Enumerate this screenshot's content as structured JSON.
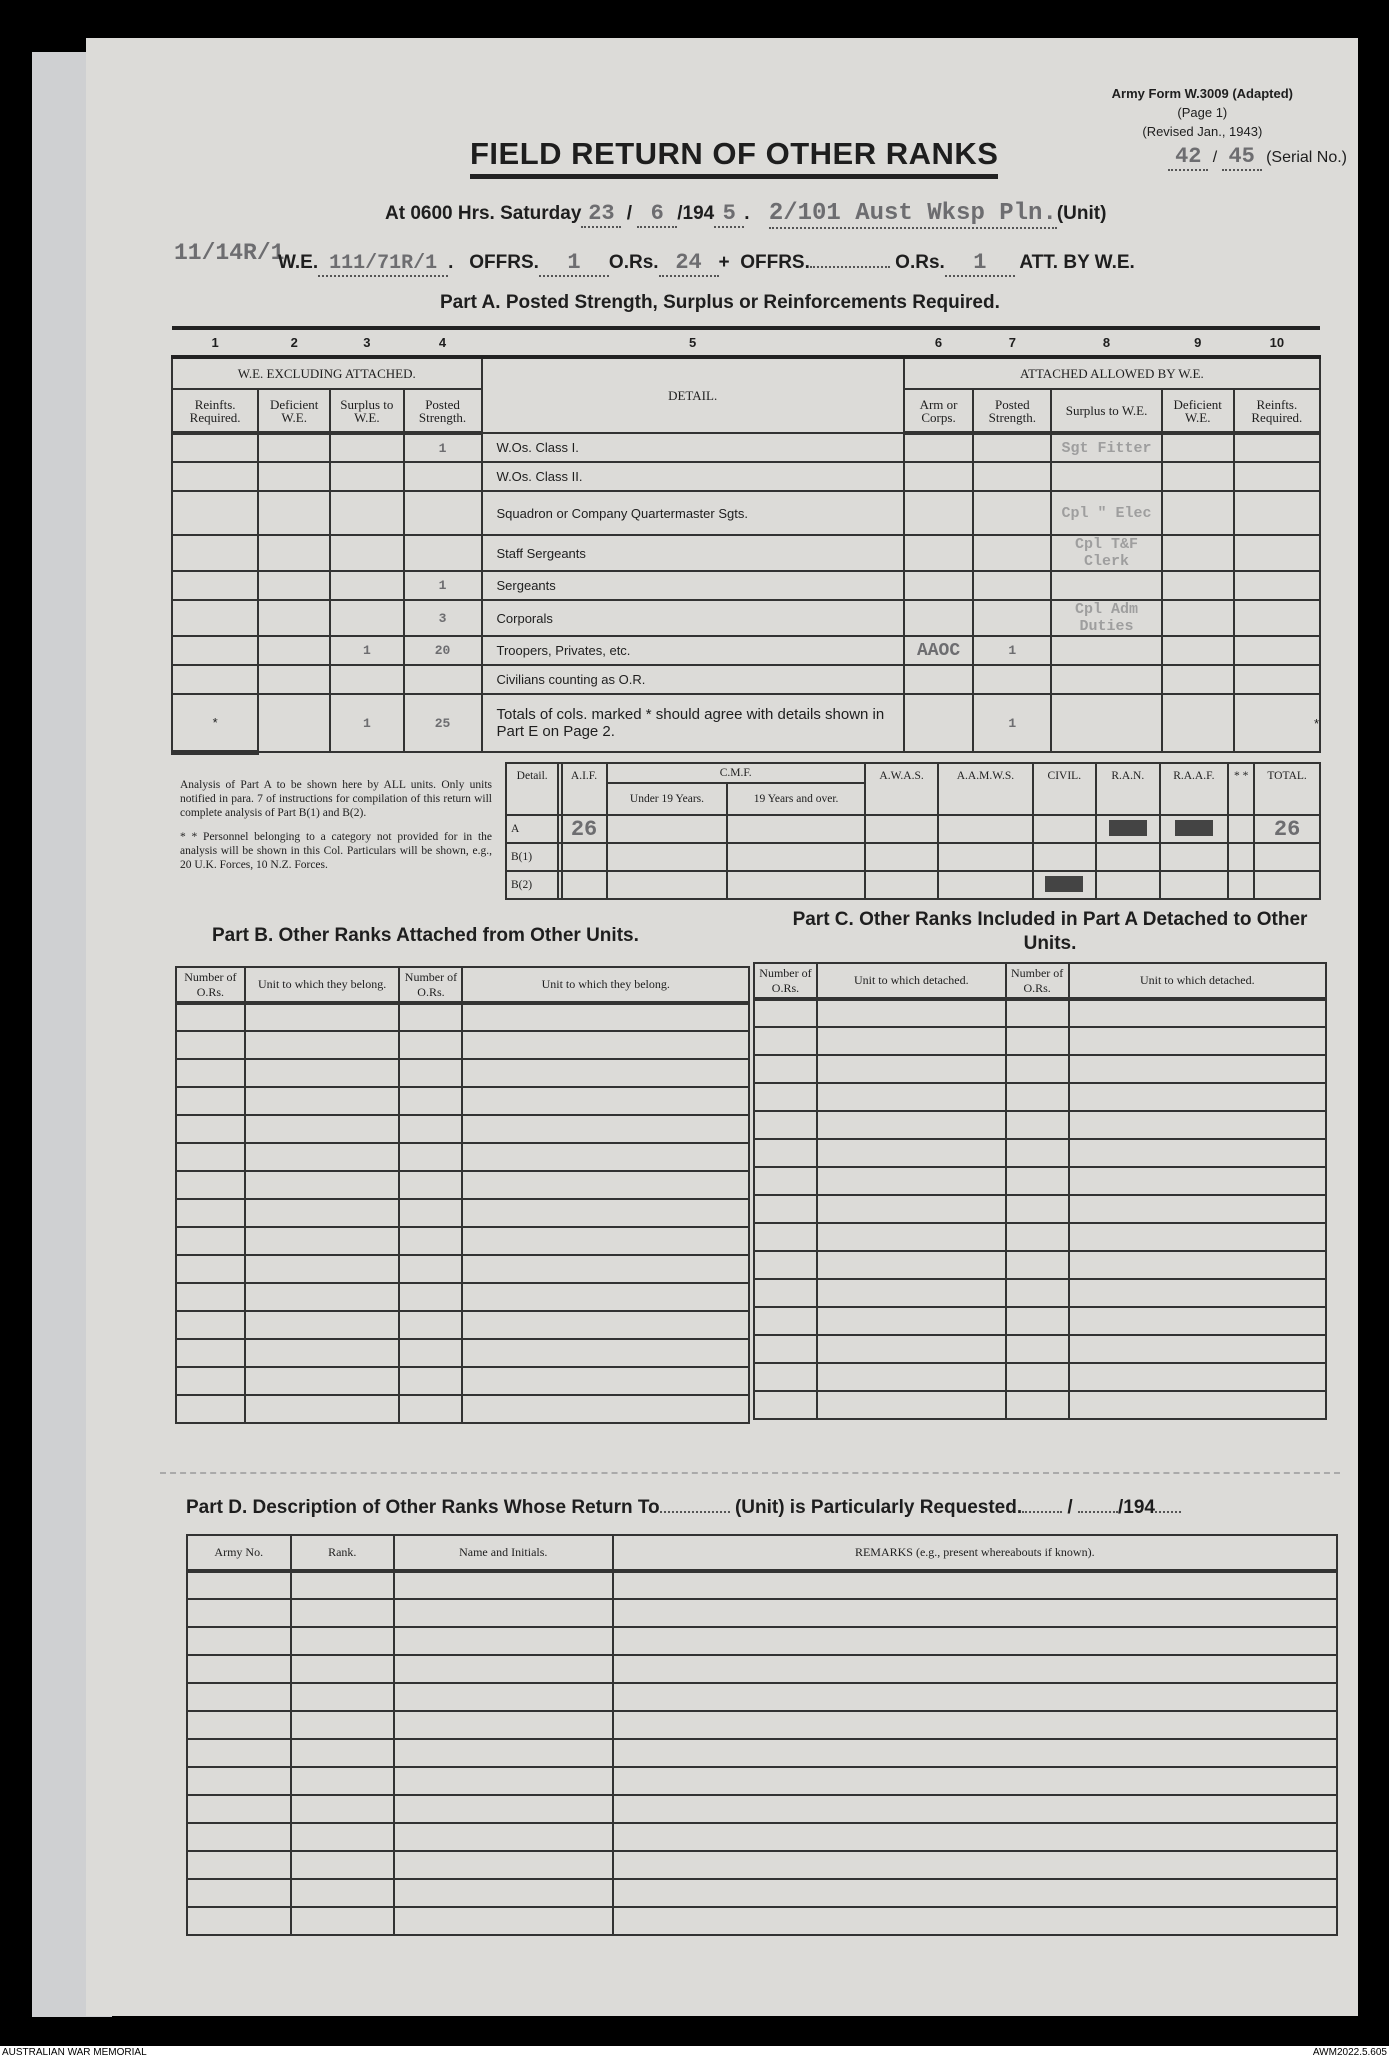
{
  "form": {
    "id": "Army Form W.3009 (Adapted)",
    "page": "(Page 1)",
    "revised": "(Revised Jan., 1943)",
    "serial": [
      "42",
      "45"
    ],
    "serial_label": "(Serial No.)",
    "title": "FIELD RETURN OF OTHER RANKS"
  },
  "header": {
    "at_label": "At 0600 Hrs. Saturday",
    "day": "23",
    "month": "6",
    "year_prefix": "/194",
    "year": "5",
    "unit_value": "2/101 Aust Wksp Pln.",
    "unit_label": "(Unit)",
    "we_label": "W.E.",
    "we_value": "111/71R/1",
    "we_alt": "11/14R/1",
    "offrs_label": "OFFRS.",
    "offrs_value": "1",
    "ors_label": "O.Rs.",
    "ors_value": "24",
    "plus": "+",
    "offrs2_label": "OFFRS.",
    "offrs2_value": "",
    "ors2_label": "O.Rs.",
    "ors2_value": "1",
    "att_label": "ATT. BY W.E."
  },
  "part_a": {
    "title": "Part A. Posted Strength, Surplus or Reinforcements Required.",
    "col_numbers": [
      "1",
      "2",
      "3",
      "4",
      "5",
      "6",
      "7",
      "8",
      "9",
      "10"
    ],
    "group_left": "W.E. EXCLUDING ATTACHED.",
    "group_right": "ATTACHED ALLOWED BY W.E.",
    "headers": [
      "Reinfts. Required.",
      "Deficient W.E.",
      "Surplus to W.E.",
      "Posted Strength.",
      "DETAIL.",
      "Arm or Corps.",
      "Posted Strength.",
      "Surplus to W.E.",
      "Deficient W.E.",
      "Reinfts. Required."
    ],
    "rows": [
      {
        "detail": "W.Os. Class I.",
        "surplus": "",
        "posted": "1",
        "arm": "",
        "att_posted": "",
        "note": "Sgt Fitter"
      },
      {
        "detail": "W.Os. Class II.",
        "surplus": "",
        "posted": "",
        "arm": "",
        "att_posted": "",
        "note": ""
      },
      {
        "detail": "Squadron or Company Quartermaster Sgts.",
        "surplus": "",
        "posted": "",
        "arm": "",
        "att_posted": "",
        "note": "Cpl \" Elec"
      },
      {
        "detail": "Staff Sergeants",
        "surplus": "",
        "posted": "",
        "arm": "",
        "att_posted": "",
        "note": "Cpl T&F Clerk"
      },
      {
        "detail": "Sergeants",
        "surplus": "",
        "posted": "1",
        "arm": "",
        "att_posted": "",
        "note": ""
      },
      {
        "detail": "Corporals",
        "surplus": "",
        "posted": "3",
        "arm": "",
        "att_posted": "",
        "note": "Cpl Adm Duties"
      },
      {
        "detail": "Troopers, Privates, etc.",
        "surplus": "1",
        "posted": "20",
        "arm": "AAOC",
        "att_posted": "1",
        "note": ""
      },
      {
        "detail": "Civilians counting as O.R.",
        "surplus": "",
        "posted": "",
        "arm": "",
        "att_posted": "",
        "note": ""
      }
    ],
    "totals": {
      "detail": "Totals of cols. marked * should agree with details shown in Part E on Page 2.",
      "surplus": "1",
      "posted": "25",
      "att_posted": "1",
      "star": "*"
    }
  },
  "analysis": {
    "note1": "Analysis of Part A to be shown here by ALL units. Only units notified in para. 7 of instructions for compilation of this return will complete analysis of Part B(1) and B(2).",
    "note2": "* * Personnel belonging to a category not provided for in the analysis will be shown in this Col. Particulars will be shown, e.g., 20 U.K. Forces, 10 N.Z. Forces.",
    "headers": [
      "Detail.",
      "",
      "A.I.F.",
      "C.M.F.",
      "A.W.A.S.",
      "A.A.M.W.S.",
      "CIVIL.",
      "R.A.N.",
      "R.A.A.F.",
      "* *",
      "TOTAL."
    ],
    "cmf_sub": [
      "Under 19 Years.",
      "19 Years and over."
    ],
    "rows": [
      {
        "detail": "A",
        "aif": "26",
        "total": "26"
      },
      {
        "detail": "B(1)",
        "aif": "",
        "total": ""
      },
      {
        "detail": "B(2)",
        "aif": "",
        "total": ""
      }
    ]
  },
  "part_b": {
    "title": "Part B. Other Ranks Attached from Other Units.",
    "headers": [
      "Number of O.Rs.",
      "Unit to which they belong.",
      "Number of O.Rs.",
      "Unit to which they belong."
    ]
  },
  "part_c": {
    "title": "Part C. Other Ranks Included in Part A Detached to Other Units.",
    "headers": [
      "Number of O.Rs.",
      "Unit to which detached.",
      "Number of O.Rs.",
      "Unit to which detached."
    ]
  },
  "part_d": {
    "title": "Part D. Description of Other Ranks Whose Return To",
    "unit": "(Unit) is Particularly Requested.",
    "date": "/194",
    "headers": [
      "Army No.",
      "Rank.",
      "Name and Initials.",
      "REMARKS (e.g., present whereabouts if known)."
    ]
  },
  "footer": {
    "left": "AUSTRALIAN WAR MEMORIAL",
    "right": "AWM2022.5.605"
  }
}
